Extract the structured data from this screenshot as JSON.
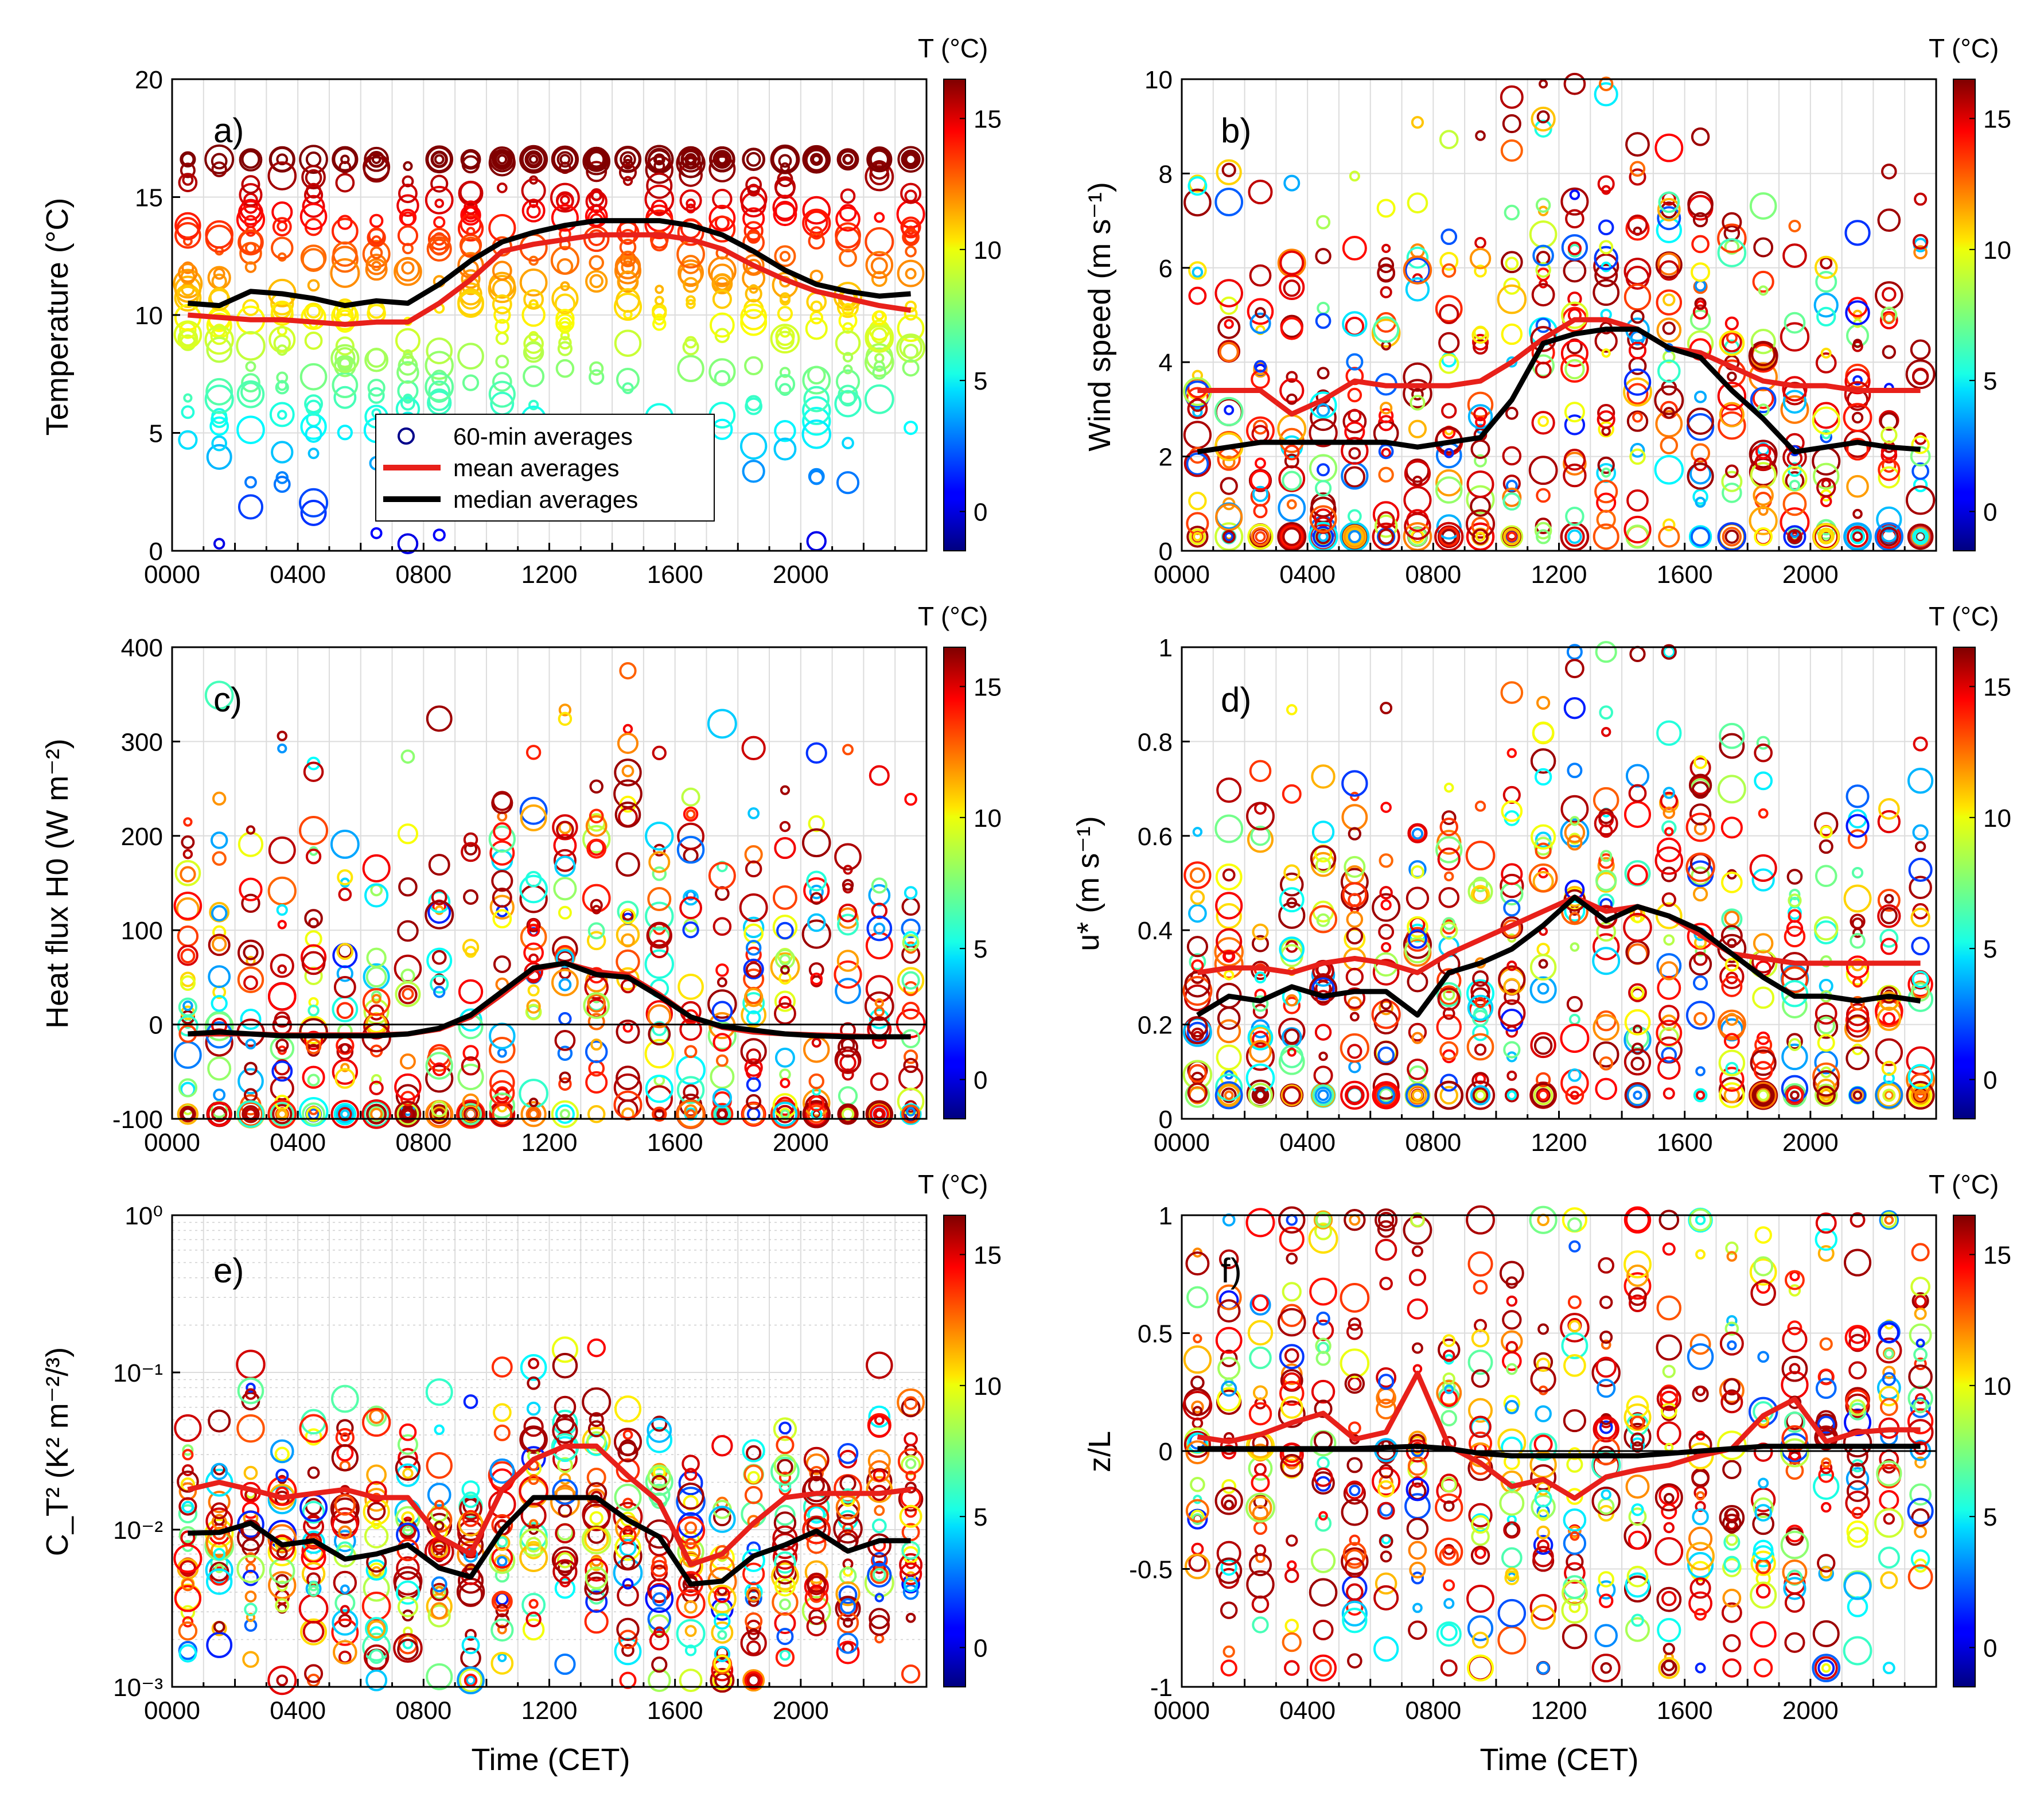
{
  "figure": {
    "colorbar_title": "T (°C)",
    "colorbar_ticks": [
      0,
      5,
      10,
      15
    ],
    "colorbar_range": [
      -1.5,
      16.5
    ],
    "legend": [
      "60-min averages",
      "mean averages",
      "median averages"
    ],
    "time_ticks": [
      "0000",
      "0400",
      "0800",
      "1200",
      "1600",
      "2000"
    ],
    "xlabel": "Time (CET)",
    "mean_color": "#e8201a",
    "median_color": "#000000"
  },
  "chart_data": [
    {
      "type": "scatter",
      "panel": "a)",
      "ylabel": "Temperature (°C)",
      "yscale": "linear",
      "ylim": [
        0,
        20
      ],
      "yticks": [
        0,
        5,
        10,
        15,
        20
      ],
      "ytick_labels": [
        "0",
        "5",
        "10",
        "15",
        "20"
      ],
      "zero_line": false,
      "hours": [
        0.5,
        1.5,
        2.5,
        3.5,
        4.5,
        5.5,
        6.5,
        7.5,
        8.5,
        9.5,
        10.5,
        11.5,
        12.5,
        13.5,
        14.5,
        15.5,
        16.5,
        17.5,
        18.5,
        19.5,
        20.5,
        21.5,
        22.5,
        23.5
      ],
      "mean": [
        10.0,
        9.9,
        9.8,
        9.8,
        9.7,
        9.6,
        9.7,
        9.7,
        10.5,
        11.5,
        12.7,
        13.0,
        13.2,
        13.4,
        13.4,
        13.4,
        13.2,
        12.8,
        12.1,
        11.5,
        11.0,
        10.7,
        10.4,
        10.2
      ],
      "median": [
        10.5,
        10.4,
        11.0,
        10.9,
        10.7,
        10.4,
        10.6,
        10.5,
        11.3,
        12.3,
        13.1,
        13.5,
        13.8,
        14.0,
        14.0,
        14.0,
        13.8,
        13.4,
        12.7,
        11.9,
        11.3,
        11.0,
        10.8,
        10.9
      ],
      "scatter_range": [
        0.3,
        16.6
      ],
      "series": [
        {
          "name": "60-min averages"
        },
        {
          "name": "mean averages"
        },
        {
          "name": "median averages"
        }
      ]
    },
    {
      "type": "scatter",
      "panel": "b)",
      "ylabel": "Wind speed (m s⁻¹)",
      "yscale": "linear",
      "ylim": [
        0,
        10
      ],
      "yticks": [
        0,
        2,
        4,
        6,
        8,
        10
      ],
      "ytick_labels": [
        "0",
        "2",
        "4",
        "6",
        "8",
        "10"
      ],
      "zero_line": false,
      "hours": [
        0.5,
        1.5,
        2.5,
        3.5,
        4.5,
        5.5,
        6.5,
        7.5,
        8.5,
        9.5,
        10.5,
        11.5,
        12.5,
        13.5,
        14.5,
        15.5,
        16.5,
        17.5,
        18.5,
        19.5,
        20.5,
        21.5,
        22.5,
        23.5
      ],
      "mean": [
        3.4,
        3.4,
        3.4,
        2.9,
        3.2,
        3.6,
        3.5,
        3.5,
        3.5,
        3.6,
        4.0,
        4.5,
        4.9,
        4.9,
        4.7,
        4.3,
        4.2,
        3.9,
        3.6,
        3.5,
        3.5,
        3.4,
        3.4,
        3.4
      ],
      "median": [
        2.1,
        2.2,
        2.3,
        2.3,
        2.3,
        2.3,
        2.3,
        2.2,
        2.3,
        2.4,
        3.2,
        4.4,
        4.6,
        4.7,
        4.7,
        4.3,
        4.1,
        3.4,
        2.8,
        2.1,
        2.2,
        2.3,
        2.2,
        2.15
      ],
      "scatter_range": [
        0.3,
        9.9
      ],
      "series": [
        {
          "name": "60-min averages"
        },
        {
          "name": "mean averages"
        },
        {
          "name": "median averages"
        }
      ]
    },
    {
      "type": "scatter",
      "panel": "c)",
      "ylabel": "Heat flux H0 (W m⁻²)",
      "yscale": "linear",
      "ylim": [
        -100,
        400
      ],
      "yticks": [
        -100,
        0,
        100,
        200,
        300,
        400
      ],
      "ytick_labels": [
        "-100",
        "0",
        "100",
        "200",
        "300",
        "400"
      ],
      "zero_line": true,
      "hours": [
        0.5,
        1.5,
        2.5,
        3.5,
        4.5,
        5.5,
        6.5,
        7.5,
        8.5,
        9.5,
        10.5,
        11.5,
        12.5,
        13.5,
        14.5,
        15.5,
        16.5,
        17.5,
        18.5,
        19.5,
        20.5,
        21.5,
        22.5,
        23.5
      ],
      "mean": [
        -10,
        -10,
        -10,
        -11,
        -11,
        -11,
        -11,
        -10,
        -5,
        8,
        32,
        58,
        65,
        56,
        52,
        32,
        8,
        -3,
        -8,
        -10,
        -11,
        -12,
        -13,
        -13
      ],
      "median": [
        -10,
        -8,
        -10,
        -12,
        -12,
        -12,
        -12,
        -10,
        -4,
        10,
        35,
        60,
        65,
        53,
        50,
        30,
        8,
        -2,
        -6,
        -10,
        -12,
        -13,
        -13,
        -13
      ],
      "scatter_range": [
        -95,
        375
      ],
      "series": [
        {
          "name": "60-min averages"
        },
        {
          "name": "mean averages"
        },
        {
          "name": "median averages"
        }
      ]
    },
    {
      "type": "scatter",
      "panel": "d)",
      "ylabel": "u* (m s⁻¹)",
      "yscale": "linear",
      "ylim": [
        0,
        1
      ],
      "yticks": [
        0,
        0.2,
        0.4,
        0.6,
        0.8,
        1
      ],
      "ytick_labels": [
        "0",
        "0.2",
        "0.4",
        "0.6",
        "0.8",
        "1"
      ],
      "zero_line": false,
      "hours": [
        0.5,
        1.5,
        2.5,
        3.5,
        4.5,
        5.5,
        6.5,
        7.5,
        8.5,
        9.5,
        10.5,
        11.5,
        12.5,
        13.5,
        14.5,
        15.5,
        16.5,
        17.5,
        18.5,
        19.5,
        20.5,
        21.5,
        22.5,
        23.5
      ],
      "mean": [
        0.31,
        0.32,
        0.32,
        0.31,
        0.33,
        0.34,
        0.33,
        0.31,
        0.35,
        0.38,
        0.41,
        0.44,
        0.47,
        0.44,
        0.45,
        0.43,
        0.39,
        0.35,
        0.34,
        0.33,
        0.33,
        0.33,
        0.33,
        0.33
      ],
      "median": [
        0.22,
        0.26,
        0.25,
        0.28,
        0.26,
        0.27,
        0.27,
        0.22,
        0.31,
        0.33,
        0.36,
        0.41,
        0.47,
        0.42,
        0.45,
        0.43,
        0.4,
        0.35,
        0.3,
        0.26,
        0.26,
        0.25,
        0.26,
        0.25
      ],
      "scatter_range": [
        0.05,
        0.99
      ],
      "series": [
        {
          "name": "60-min averages"
        },
        {
          "name": "mean averages"
        },
        {
          "name": "median averages"
        }
      ]
    },
    {
      "type": "scatter",
      "panel": "e)",
      "ylabel": "C_T² (K² m⁻²/³)",
      "yscale": "log",
      "ylim": [
        0.001,
        1
      ],
      "yticks": [
        0.001,
        0.01,
        0.1,
        1
      ],
      "ytick_labels": [
        "10⁻³",
        "10⁻²",
        "10⁻¹",
        "10⁰"
      ],
      "zero_line": false,
      "hours": [
        0.5,
        1.5,
        2.5,
        3.5,
        4.5,
        5.5,
        6.5,
        7.5,
        8.5,
        9.5,
        10.5,
        11.5,
        12.5,
        13.5,
        14.5,
        15.5,
        16.5,
        17.5,
        18.5,
        19.5,
        20.5,
        21.5,
        22.5,
        23.5
      ],
      "mean": [
        0.018,
        0.02,
        0.018,
        0.016,
        0.017,
        0.018,
        0.016,
        0.016,
        0.009,
        0.007,
        0.018,
        0.028,
        0.034,
        0.034,
        0.022,
        0.015,
        0.006,
        0.007,
        0.011,
        0.016,
        0.017,
        0.017,
        0.017,
        0.018
      ],
      "median": [
        0.0095,
        0.0096,
        0.011,
        0.008,
        0.0085,
        0.0065,
        0.007,
        0.008,
        0.0057,
        0.005,
        0.01,
        0.016,
        0.016,
        0.016,
        0.0115,
        0.009,
        0.0045,
        0.0047,
        0.0068,
        0.008,
        0.0098,
        0.0073,
        0.0085,
        0.0085
      ],
      "scatter_range": [
        0.0011,
        0.25
      ],
      "series": [
        {
          "name": "60-min averages"
        },
        {
          "name": "mean averages"
        },
        {
          "name": "median averages"
        }
      ]
    },
    {
      "type": "scatter",
      "panel": "f)",
      "ylabel": "z/L",
      "yscale": "linear",
      "ylim": [
        -1,
        1
      ],
      "yticks": [
        -1,
        -0.5,
        0,
        0.5,
        1
      ],
      "ytick_labels": [
        "-1",
        "-0.5",
        "0",
        "0.5",
        "1"
      ],
      "zero_line": true,
      "hours": [
        0.5,
        1.5,
        2.5,
        3.5,
        4.5,
        5.5,
        6.5,
        7.5,
        8.5,
        9.5,
        10.5,
        11.5,
        12.5,
        13.5,
        14.5,
        15.5,
        16.5,
        17.5,
        18.5,
        19.5,
        20.5,
        21.5,
        22.5,
        23.5
      ],
      "mean": [
        0.06,
        0.04,
        0.07,
        0.12,
        0.16,
        0.05,
        0.08,
        0.33,
        0.02,
        -0.05,
        -0.15,
        -0.12,
        -0.2,
        -0.11,
        -0.08,
        -0.06,
        -0.02,
        0.01,
        0.15,
        0.22,
        0.04,
        0.08,
        0.09,
        0.09
      ],
      "median": [
        0.01,
        0.01,
        0.01,
        0.01,
        0.01,
        0.01,
        0.015,
        0.02,
        0.01,
        -0.01,
        -0.02,
        -0.02,
        -0.02,
        -0.02,
        -0.02,
        -0.01,
        0.0,
        0.01,
        0.02,
        0.02,
        0.02,
        0.02,
        0.02,
        0.02
      ],
      "scatter_range": [
        -0.92,
        0.98
      ],
      "series": [
        {
          "name": "60-min averages"
        },
        {
          "name": "mean averages"
        },
        {
          "name": "median averages"
        }
      ]
    }
  ]
}
